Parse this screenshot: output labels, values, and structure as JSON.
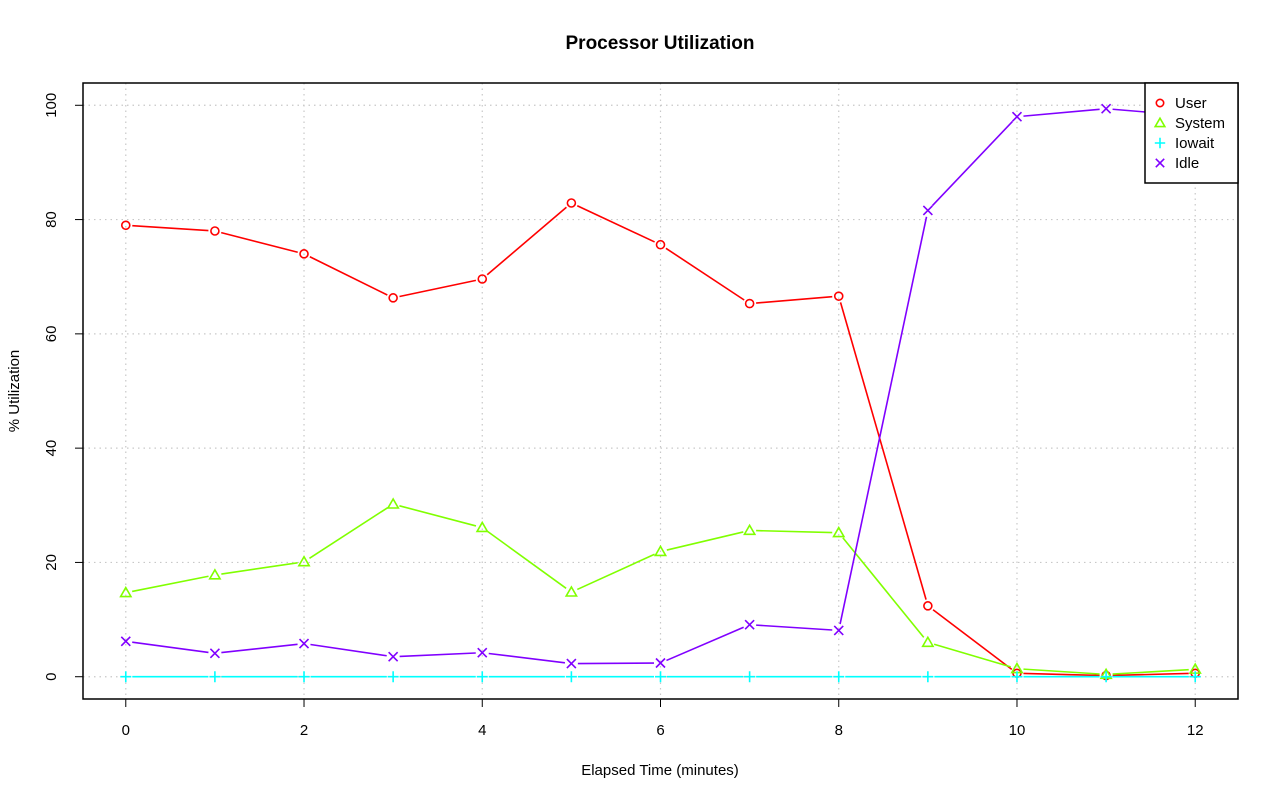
{
  "chart_data": {
    "type": "line",
    "title": "Processor Utilization",
    "xlabel": "Elapsed Time (minutes)",
    "ylabel": "% Utilization",
    "x": [
      0,
      1,
      2,
      3,
      4,
      5,
      6,
      7,
      8,
      9,
      10,
      11,
      12
    ],
    "xlim": [
      -0.48,
      12.48
    ],
    "ylim": [
      -3.9,
      103.9
    ],
    "x_ticks": [
      0,
      2,
      4,
      6,
      8,
      10,
      12
    ],
    "y_ticks": [
      0,
      20,
      40,
      60,
      80,
      100
    ],
    "grid": true,
    "legend_position": "top-right",
    "series": [
      {
        "name": "User",
        "color": "#ff0000",
        "marker": "circle",
        "values": [
          79,
          78,
          74,
          66.3,
          69.6,
          82.9,
          75.6,
          65.3,
          66.6,
          12.4,
          0.6,
          0.2,
          0.6
        ]
      },
      {
        "name": "System",
        "color": "#80ff00",
        "marker": "triangle",
        "values": [
          14.7,
          17.8,
          20.1,
          30.2,
          26.1,
          14.8,
          21.9,
          25.6,
          25.2,
          6,
          1.4,
          0.4,
          1.3
        ]
      },
      {
        "name": "Iowait",
        "color": "#00ffff",
        "marker": "plus",
        "values": [
          0,
          0,
          0,
          0,
          0,
          0,
          0,
          0,
          0,
          0,
          0,
          0,
          0
        ]
      },
      {
        "name": "Idle",
        "color": "#8000ff",
        "marker": "x",
        "values": [
          6.2,
          4.1,
          5.8,
          3.5,
          4.2,
          2.3,
          2.4,
          9.1,
          8.1,
          81.6,
          98,
          99.4,
          98.1
        ]
      }
    ]
  }
}
